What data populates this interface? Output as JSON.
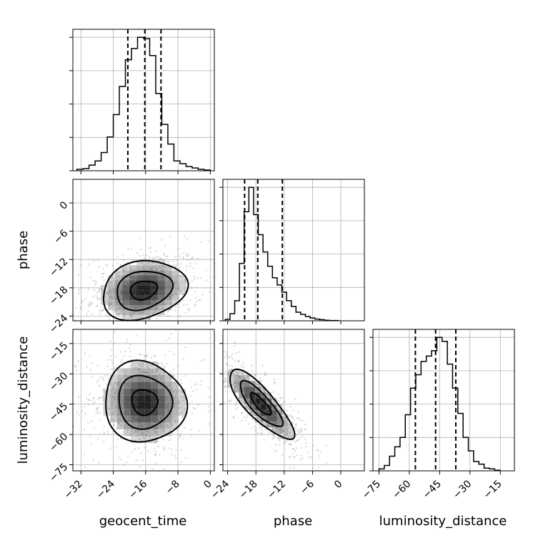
{
  "chart_data": {
    "type": "corner",
    "parameters": [
      {
        "name": "geocent_time",
        "label": "geocent_time",
        "range": [
          -34,
          1
        ],
        "ticks": [
          -32,
          -24,
          -16,
          -8,
          0
        ],
        "quantiles": [
          -20.4,
          -16.2,
          -12.2
        ]
      },
      {
        "name": "phase",
        "label": "phase",
        "range": [
          -25,
          5
        ],
        "ticks": [
          -24,
          -18,
          -12,
          -6,
          0
        ],
        "quantiles": [
          -20.4,
          -17.6,
          -12.4
        ]
      },
      {
        "name": "luminosity_distance",
        "label": "luminosity_distance",
        "range": [
          -78,
          -8
        ],
        "ticks": [
          -75,
          -60,
          -45,
          -30,
          -15
        ],
        "quantiles": [
          -57,
          -47,
          -37
        ]
      }
    ],
    "histograms": {
      "geocent_time": {
        "bin_edges": [
          -33,
          -31.5,
          -30,
          -28.5,
          -27,
          -25.5,
          -24,
          -22.5,
          -21,
          -19.5,
          -18,
          -16.5,
          -15,
          -13.5,
          -12,
          -10.5,
          -9,
          -7.5,
          -6,
          -4.5,
          -3,
          -1.5,
          0
        ],
        "counts": [
          0.01,
          0.015,
          0.04,
          0.07,
          0.13,
          0.24,
          0.4,
          0.6,
          0.79,
          0.87,
          0.95,
          0.94,
          0.82,
          0.55,
          0.33,
          0.19,
          0.07,
          0.05,
          0.03,
          0.02,
          0.01,
          0.005
        ]
      },
      "phase": {
        "bin_edges": [
          -24.5,
          -23.5,
          -22.5,
          -21.5,
          -20.5,
          -19.5,
          -18.5,
          -17.5,
          -16.5,
          -15.5,
          -14.5,
          -13.5,
          -12.5,
          -11.5,
          -10.5,
          -9.5,
          -8.5,
          -7.5,
          -6.5,
          -5.5,
          -4.5,
          -3.5,
          -2.5,
          -1.5,
          -0.5
        ],
        "counts": [
          0.01,
          0.05,
          0.14,
          0.4,
          0.76,
          0.93,
          0.74,
          0.6,
          0.48,
          0.38,
          0.3,
          0.25,
          0.2,
          0.14,
          0.1,
          0.06,
          0.045,
          0.03,
          0.02,
          0.012,
          0.008,
          0.004,
          0.002,
          0.002
        ]
      },
      "luminosity_distance": {
        "bin_edges": [
          -75,
          -72.4,
          -69.8,
          -67.2,
          -64.6,
          -62,
          -59.4,
          -56.8,
          -54.2,
          -51.6,
          -49,
          -46.4,
          -43.8,
          -41.2,
          -38.6,
          -36,
          -33.4,
          -30.8,
          -28.2,
          -25.6,
          -23,
          -20.4,
          -17.8,
          -15.2
        ],
        "counts": [
          0.015,
          0.04,
          0.11,
          0.18,
          0.25,
          0.42,
          0.62,
          0.72,
          0.82,
          0.86,
          0.9,
          1.0,
          0.97,
          0.8,
          0.62,
          0.43,
          0.25,
          0.15,
          0.07,
          0.05,
          0.02,
          0.015,
          0.005
        ]
      }
    },
    "pairs": [
      {
        "x": "geocent_time",
        "y": "phase",
        "center": [
          -16.5,
          -18.5
        ],
        "spread": [
          5.5,
          3.3
        ],
        "correlation": 0.2,
        "n_points": 650
      },
      {
        "x": "geocent_time",
        "y": "luminosity_distance",
        "center": [
          -16.3,
          -44
        ],
        "spread": [
          5.3,
          10.5
        ],
        "correlation": -0.05,
        "n_points": 650
      },
      {
        "x": "phase",
        "y": "luminosity_distance",
        "center": [
          -17,
          -45
        ],
        "spread": [
          3.6,
          9
        ],
        "correlation": -0.82,
        "n_points": 650
      }
    ],
    "grid": true,
    "colors": {
      "ink": "#000000",
      "grid": "#b0b0b0",
      "scatter": "#555555"
    }
  }
}
